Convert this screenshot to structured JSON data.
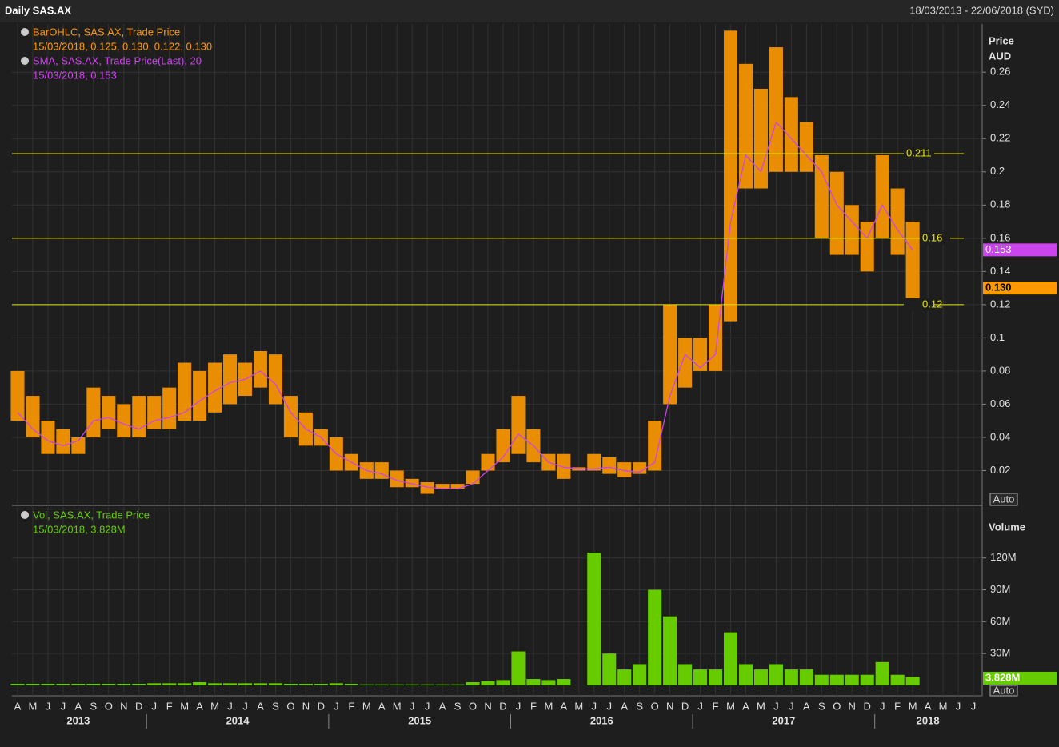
{
  "chart_data": [
    {
      "type": "ohlc",
      "title": "Daily SAS.AX",
      "subtitle": "18/03/2013 - 22/06/2018 (SYD)",
      "y_label": [
        "Price",
        "AUD"
      ],
      "scale_button": "Auto",
      "categories": [
        "A",
        "M",
        "J",
        "J",
        "A",
        "S",
        "O",
        "N",
        "D",
        "J",
        "F",
        "M",
        "A",
        "M",
        "J",
        "J",
        "A",
        "S",
        "O",
        "N",
        "D",
        "J",
        "F",
        "M",
        "A",
        "M",
        "J",
        "J",
        "A",
        "S",
        "O",
        "N",
        "D",
        "J",
        "F",
        "M",
        "A",
        "M",
        "J",
        "J",
        "A",
        "S",
        "O",
        "N",
        "D",
        "J",
        "F",
        "M",
        "A",
        "M",
        "J",
        "J",
        "A",
        "S",
        "O",
        "N",
        "D",
        "J",
        "F",
        "M",
        "A",
        "M",
        "J",
        "J"
      ],
      "years": [
        "2013",
        "2014",
        "2015",
        "2016",
        "2017",
        "2018"
      ],
      "series": [
        {
          "name": "BarOHLC, SAS.AX, Trade Price",
          "legend_value": "15/03/2018, 0.125, 0.130, 0.122, 0.130",
          "color": "#ff9900",
          "high": [
            0.08,
            0.065,
            0.05,
            0.045,
            0.04,
            0.07,
            0.065,
            0.06,
            0.065,
            0.065,
            0.07,
            0.085,
            0.08,
            0.085,
            0.09,
            0.085,
            0.092,
            0.09,
            0.065,
            0.055,
            0.045,
            0.04,
            0.03,
            0.025,
            0.025,
            0.02,
            0.015,
            0.013,
            0.012,
            0.012,
            0.02,
            0.03,
            0.045,
            0.065,
            0.045,
            0.03,
            0.03,
            0.022,
            0.03,
            0.028,
            0.025,
            0.025,
            0.05,
            0.12,
            0.1,
            0.1,
            0.12,
            0.285,
            0.265,
            0.25,
            0.275,
            0.245,
            0.23,
            0.21,
            0.2,
            0.18,
            0.17,
            0.21,
            0.19,
            0.17,
            null,
            null,
            null,
            null
          ],
          "low": [
            0.05,
            0.04,
            0.03,
            0.03,
            0.03,
            0.04,
            0.045,
            0.04,
            0.04,
            0.045,
            0.045,
            0.05,
            0.05,
            0.055,
            0.06,
            0.065,
            0.07,
            0.06,
            0.04,
            0.035,
            0.035,
            0.02,
            0.02,
            0.015,
            0.015,
            0.01,
            0.01,
            0.006,
            0.009,
            0.009,
            0.012,
            0.02,
            0.025,
            0.03,
            0.025,
            0.02,
            0.015,
            0.02,
            0.02,
            0.018,
            0.016,
            0.018,
            0.02,
            0.06,
            0.07,
            0.08,
            0.08,
            0.11,
            0.19,
            0.19,
            0.2,
            0.2,
            0.2,
            0.16,
            0.15,
            0.15,
            0.14,
            0.16,
            0.15,
            0.12,
            null,
            null,
            null,
            null
          ],
          "last": {
            "value": 0.13,
            "label": "0.130"
          }
        },
        {
          "name": "SMA, SAS.AX, Trade Price(Last),  20",
          "legend_value": "15/03/2018, 0.153",
          "color": "#cc44ee",
          "values": [
            0.055,
            0.045,
            0.038,
            0.035,
            0.038,
            0.05,
            0.052,
            0.048,
            0.045,
            0.05,
            0.052,
            0.055,
            0.062,
            0.068,
            0.073,
            0.075,
            0.08,
            0.072,
            0.055,
            0.045,
            0.04,
            0.03,
            0.025,
            0.02,
            0.018,
            0.014,
            0.012,
            0.01,
            0.009,
            0.009,
            0.012,
            0.02,
            0.028,
            0.042,
            0.035,
            0.025,
            0.022,
            0.021,
            0.021,
            0.022,
            0.02,
            0.019,
            0.025,
            0.065,
            0.09,
            0.082,
            0.09,
            0.17,
            0.21,
            0.2,
            0.23,
            0.22,
            0.21,
            0.2,
            0.18,
            0.17,
            0.16,
            0.18,
            0.165,
            0.153,
            null,
            null,
            null,
            null
          ],
          "last": 0.153
        }
      ],
      "hlines": [
        0.211,
        0.16,
        0.12
      ],
      "hline_color": "#e6e600",
      "ylim": [
        0,
        0.289
      ],
      "yticks": [
        0.02,
        0.04,
        0.06,
        0.08,
        0.1,
        0.12,
        0.14,
        0.16,
        0.18,
        0.2,
        0.22,
        0.24,
        0.26
      ],
      "grid": true
    },
    {
      "type": "bar",
      "y_label": "Volume",
      "scale_button": "Auto",
      "series": [
        {
          "name": "Vol, SAS.AX, Trade Price",
          "legend_value": "15/03/2018, 3.828M",
          "color": "#66cc00",
          "values": [
            1.5,
            1.5,
            1.5,
            1.5,
            1.5,
            1.5,
            1.5,
            1.5,
            1.5,
            2,
            2,
            2,
            3,
            2,
            2,
            2,
            2,
            2,
            1.5,
            1.5,
            1.5,
            2,
            1.5,
            1,
            1,
            1,
            1,
            1,
            1,
            1,
            3,
            4,
            5,
            32,
            6,
            5,
            6,
            null,
            125,
            30,
            15,
            20,
            90,
            65,
            20,
            15,
            15,
            50,
            20,
            15,
            20,
            15,
            15,
            10,
            10,
            10,
            10,
            22,
            10,
            8,
            null,
            null,
            null,
            null
          ],
          "last": {
            "value": 3.828,
            "label": "3.828M"
          }
        }
      ],
      "ylim": [
        0,
        168
      ],
      "yticks": [
        {
          "value": 30,
          "label": "30M"
        },
        {
          "value": 60,
          "label": "60M"
        },
        {
          "value": 90,
          "label": "90M"
        },
        {
          "value": 120,
          "label": "120M"
        }
      ],
      "grid": true
    }
  ]
}
